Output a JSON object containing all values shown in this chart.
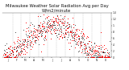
{
  "title": "Milwaukee Weather Solar Radiation Avg per Day W/m2/minute",
  "title_fontsize": 3.8,
  "background_color": "#ffffff",
  "plot_bg_color": "#ffffff",
  "grid_color": "#aaaaaa",
  "dot_color_red": "#ff0000",
  "dot_color_black": "#111111",
  "ylim": [
    0.0,
    1.4
  ],
  "ytick_vals": [
    0.0,
    0.2,
    0.4,
    0.6,
    0.8,
    1.0,
    1.2,
    1.4
  ],
  "ytick_labels": [
    ".0",
    ".2",
    ".4",
    ".6",
    ".8",
    "1.",
    "1.2",
    "1.4"
  ],
  "month_lengths": [
    31,
    28,
    31,
    30,
    31,
    30,
    31,
    31,
    30,
    31,
    30,
    31
  ],
  "x_labels": [
    "J",
    "a",
    "n",
    "F",
    "e",
    "b",
    "M",
    "a",
    "r",
    "A",
    "p",
    "r",
    "M",
    "a",
    "y",
    "J",
    "u",
    "n",
    "J",
    "u",
    "l",
    "A",
    "u",
    "g",
    "S",
    "e",
    "p",
    "O",
    "c",
    "t",
    "N",
    "o",
    "v",
    "D",
    "e",
    "c"
  ],
  "seed": 17,
  "num_years": 2
}
